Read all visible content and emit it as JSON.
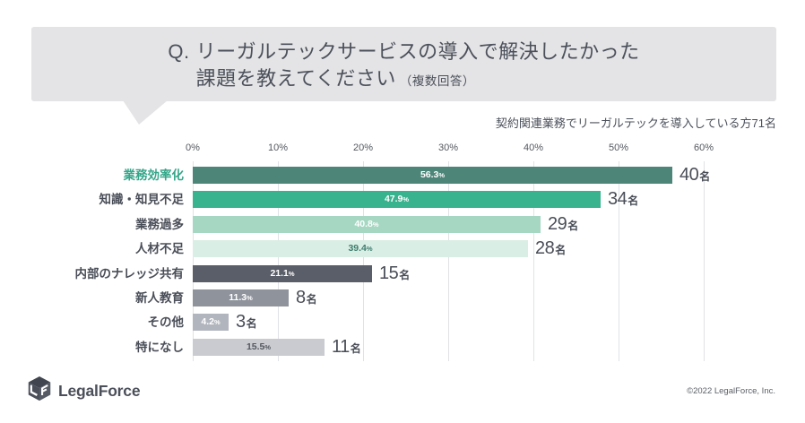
{
  "header": {
    "question_prefix": "Q.",
    "title_line1": "リーガルテックサービスの導入で解決したかった",
    "title_line2": "課題を教えてください",
    "title_note": "（複数回答）",
    "subtitle": "契約関連業務でリーガルテックを導入している方71名"
  },
  "chart_data": {
    "type": "bar",
    "orientation": "horizontal",
    "title": "リーガルテックサービスの導入で解決したかった課題（複数回答）",
    "xlabel": "",
    "ylabel": "",
    "xlim": [
      0,
      60
    ],
    "x_ticks": [
      "0%",
      "10%",
      "20%",
      "30%",
      "40%",
      "50%",
      "60%"
    ],
    "grid": true,
    "categories": [
      "業務効率化",
      "知識・知見不足",
      "業務過多",
      "人材不足",
      "内部のナレッジ共有",
      "新人教育",
      "その他",
      "特になし"
    ],
    "values_percent": [
      56.3,
      47.9,
      40.8,
      39.4,
      21.1,
      11.3,
      4.2,
      15.5
    ],
    "counts": [
      40,
      34,
      29,
      28,
      15,
      8,
      3,
      11
    ],
    "count_suffix": "名",
    "percent_sign": "%",
    "bar_colors": [
      "#4d8678",
      "#39b28e",
      "#a5d7c2",
      "#d9eee4",
      "#5a5e68",
      "#8f939c",
      "#b1b5bd",
      "#c9cbd1"
    ],
    "value_label_colors": [
      "#ffffff",
      "#ffffff",
      "#ffffff",
      "#3f7d6e",
      "#ffffff",
      "#ffffff",
      "#ffffff",
      "#55585f"
    ],
    "category_label_colors": [
      "#34a689",
      "#4a4e58",
      "#4a4e58",
      "#4a4e58",
      "#4a4e58",
      "#4a4e58",
      "#4a4e58",
      "#4a4e58"
    ]
  },
  "footer": {
    "logo_text": "LegalForce",
    "copyright": "©2022 LegalForce, Inc."
  }
}
